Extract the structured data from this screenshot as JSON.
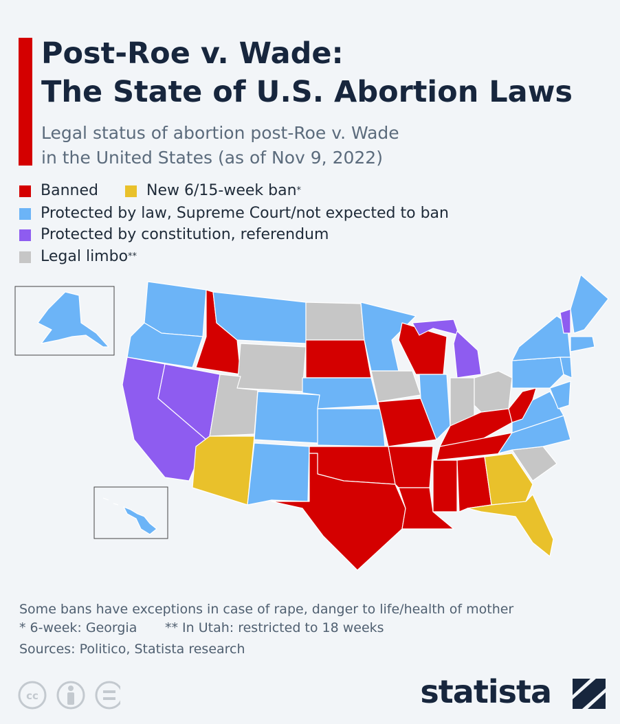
{
  "header": {
    "title_lines": [
      "Post-Roe v. Wade:",
      "The State of U.S. Abortion Laws"
    ],
    "subtitle_lines": [
      "Legal status of abortion post-Roe v. Wade",
      "in the United States (as of Nov 9, 2022)"
    ]
  },
  "legend": [
    {
      "label": "Banned",
      "color": "#d40000"
    },
    {
      "label": "New 6/15-week ban",
      "note": "*",
      "color": "#e9c12b"
    },
    {
      "label": "Protected by law, Supreme Court/not expected to ban",
      "color": "#6cb4f7"
    },
    {
      "label": "Protected by constitution, referendum",
      "color": "#8e5cf0"
    },
    {
      "label": "Legal limbo",
      "note": "**",
      "color": "#c6c6c6"
    }
  ],
  "footer": {
    "notes": [
      "Some bans have exceptions in case of rape, danger to life/health of mother",
      "* 6-week: Georgia",
      "** In Utah: restricted to 18 weeks"
    ],
    "source": "Sources: Politico, Statista research",
    "brand": "statista"
  }
}
